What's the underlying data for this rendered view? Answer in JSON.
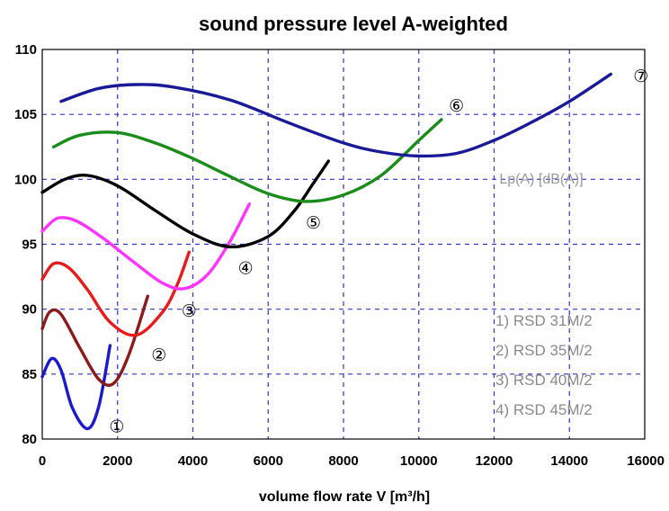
{
  "chart_data": {
    "type": "line",
    "title": "sound pressure level A-weighted",
    "xlabel": "volume flow rate  V [m³/h]",
    "unit_label": "Lp(A) [dB(A)]",
    "xlim": [
      0,
      16000
    ],
    "ylim": [
      80,
      110
    ],
    "x_ticks": [
      "0",
      "2000",
      "4000",
      "6000",
      "8000",
      "10000",
      "12000",
      "14000",
      "16000"
    ],
    "y_ticks": [
      "80",
      "85",
      "90",
      "95",
      "100",
      "105",
      "110"
    ],
    "grid": true,
    "grid_color": "#3333cc",
    "legend_entries": [
      "1) RSD 31M/2",
      "2) RSD 35M/2",
      "3) RSD 40M/2",
      "4) RSD 45M/2"
    ],
    "series": [
      {
        "marker": "①",
        "color": "#1a1acc",
        "x": [
          0,
          250,
          500,
          800,
          1200,
          1500,
          1800
        ],
        "y": [
          84.8,
          86.2,
          85.3,
          82.4,
          80.8,
          82.5,
          87.2
        ],
        "marker_at": [
          1980,
          81.0
        ]
      },
      {
        "marker": "②",
        "color": "#8b1a1a",
        "x": [
          0,
          200,
          500,
          1000,
          1500,
          1900,
          2300,
          2800
        ],
        "y": [
          88.5,
          89.8,
          89.6,
          87.0,
          84.6,
          84.3,
          86.5,
          91.0
        ],
        "marker_at": [
          3100,
          86.5
        ]
      },
      {
        "marker": "③",
        "color": "#e81a1a",
        "x": [
          0,
          300,
          700,
          1200,
          1800,
          2500,
          3200,
          3600,
          3900
        ],
        "y": [
          92.3,
          93.5,
          93.2,
          91.5,
          89.0,
          88.0,
          89.8,
          92.0,
          94.4
        ],
        "marker_at": [
          3900,
          89.9
        ]
      },
      {
        "marker": "④",
        "color": "#ff33ff",
        "x": [
          0,
          400,
          900,
          1600,
          2400,
          3200,
          3800,
          4400,
          5000,
          5500
        ],
        "y": [
          96.0,
          97.0,
          96.8,
          95.5,
          93.7,
          92.0,
          91.6,
          92.7,
          95.3,
          98.1
        ],
        "marker_at": [
          5400,
          93.2
        ]
      },
      {
        "marker": "⑤",
        "color": "#000000",
        "x": [
          0,
          600,
          1200,
          2000,
          3000,
          4000,
          5000,
          6000,
          6700,
          7200,
          7600
        ],
        "y": [
          99.0,
          100.0,
          100.3,
          99.5,
          97.6,
          95.8,
          94.8,
          95.6,
          97.6,
          99.7,
          101.4
        ],
        "marker_at": [
          7200,
          96.7
        ]
      },
      {
        "marker": "⑥",
        "color": "#1a8c1a",
        "x": [
          300,
          1000,
          2000,
          3000,
          4000,
          5000,
          6000,
          7000,
          8000,
          9000,
          10000,
          10600
        ],
        "y": [
          102.5,
          103.4,
          103.6,
          102.8,
          101.6,
          100.2,
          98.9,
          98.3,
          98.8,
          100.3,
          103.0,
          104.6
        ],
        "marker_at": [
          11000,
          105.7
        ]
      },
      {
        "marker": "⑦",
        "color": "#1a1a99",
        "x": [
          500,
          1500,
          2500,
          3500,
          5000,
          6500,
          8000,
          9000,
          10000,
          11000,
          12000,
          13000,
          14000,
          15100
        ],
        "y": [
          106.0,
          107.0,
          107.3,
          107.1,
          106.1,
          104.4,
          102.8,
          102.1,
          101.8,
          102.0,
          103.0,
          104.4,
          106.0,
          108.1
        ],
        "marker_at": [
          15900,
          108.0
        ]
      }
    ]
  }
}
